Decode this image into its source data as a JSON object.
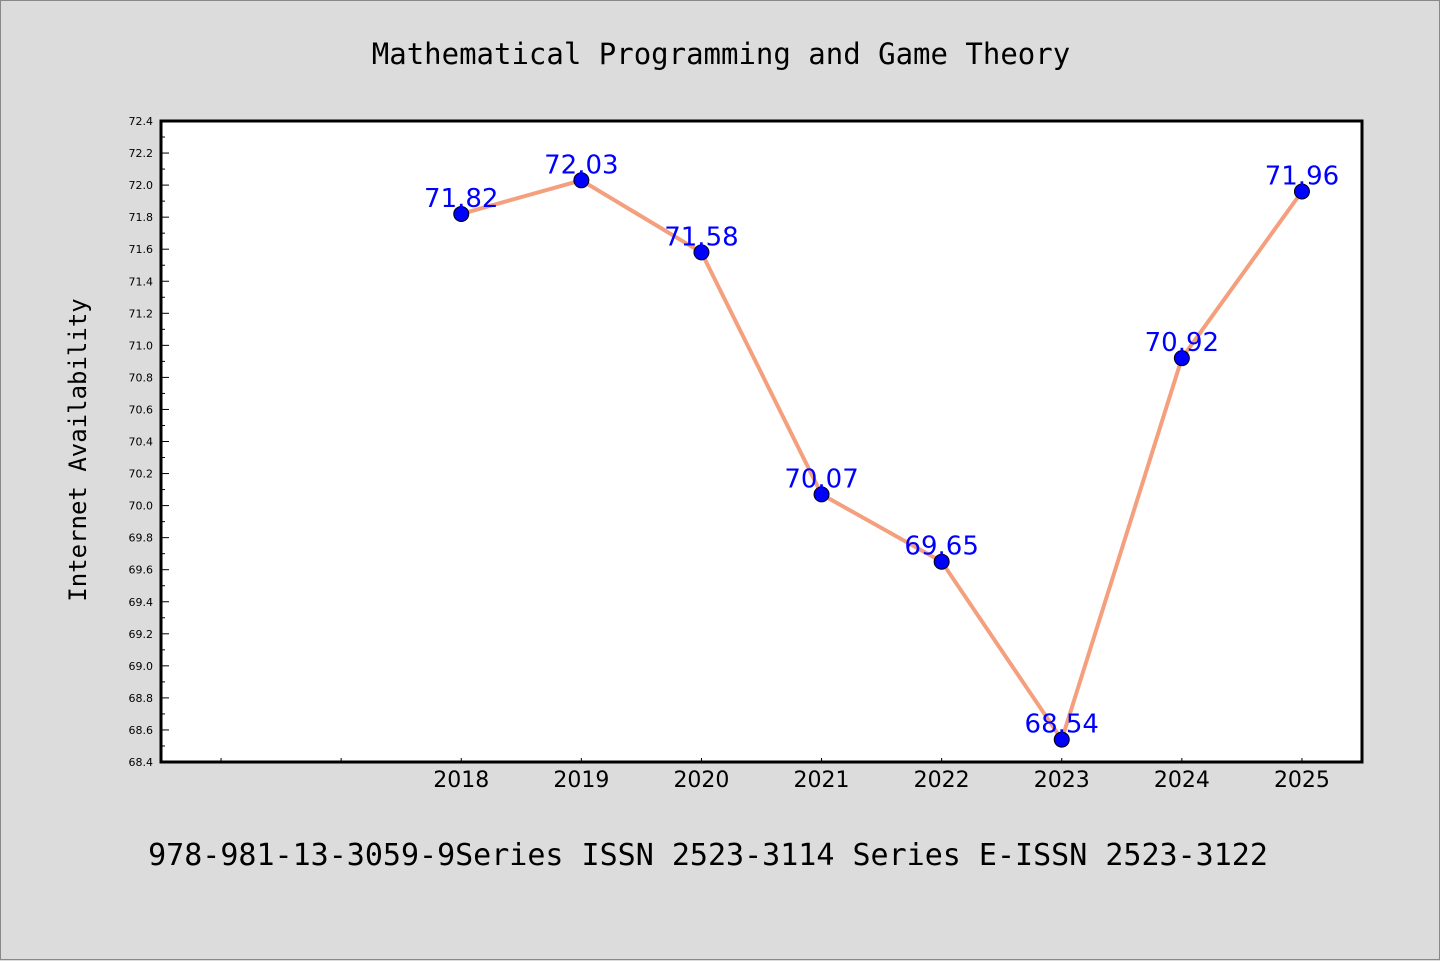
{
  "chart_data": {
    "type": "line",
    "title": "Mathematical Programming and Game Theory",
    "ylabel": "Internet Availability",
    "xlabel": "",
    "footer": "978-981-13-3059-9Series ISSN 2523-3114 Series E-ISSN 2523-3122",
    "categories": [
      "2018",
      "2019",
      "2020",
      "2021",
      "2022",
      "2023",
      "2024",
      "2025"
    ],
    "values": [
      71.82,
      72.03,
      71.58,
      70.07,
      69.65,
      68.54,
      70.92,
      71.96
    ],
    "data_labels": [
      "71.82",
      "72.03",
      "71.58",
      "70.07",
      "69.65",
      "68.54",
      "70.92",
      "71.96"
    ],
    "ylim": [
      68.4,
      72.4
    ],
    "yticks": [
      "68.4",
      "68.6",
      "68.8",
      "69.0",
      "69.2",
      "69.4",
      "69.6",
      "69.8",
      "70.0",
      "70.2",
      "70.4",
      "70.6",
      "70.8",
      "71.0",
      "71.2",
      "71.4",
      "71.6",
      "71.8",
      "72.0",
      "72.2",
      "72.4"
    ],
    "grid": false,
    "legend": "none",
    "colors": {
      "line": "#f4a07e",
      "marker": "#0000ff",
      "data_label": "#0000ff",
      "background": "#dcdcdc",
      "plot_background": "#ffffff"
    }
  }
}
